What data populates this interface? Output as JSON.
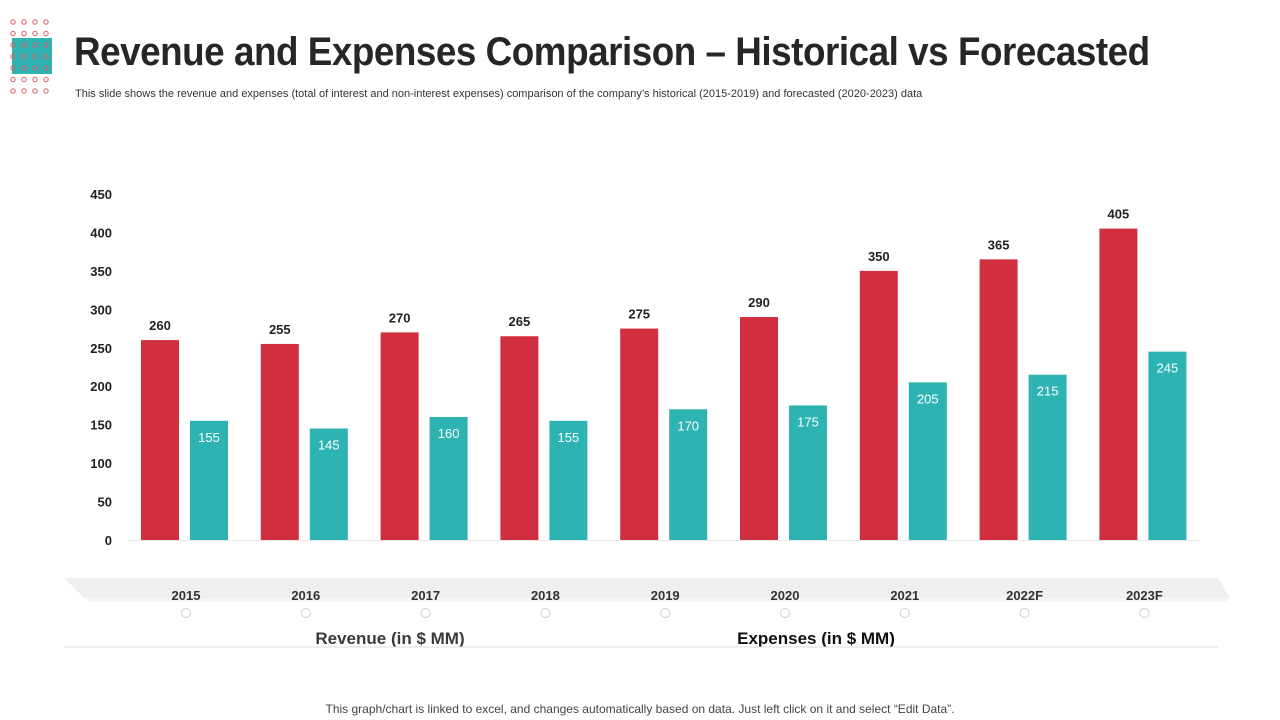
{
  "header": {
    "title": "Revenue and Expenses Comparison – Historical vs Forecasted",
    "subtitle": "This slide shows the revenue and expenses (total of interest and non-interest expenses) comparison of the company’s historical (2015-2019) and forecasted (2020-2023) data"
  },
  "footer": {
    "note": "This graph/chart is linked to excel, and changes automatically based on data. Just left click on it and select “Edit Data”."
  },
  "colors": {
    "revenue": "#d12e3f",
    "expenses": "#2db3b1",
    "logo_accent": "#2db3b1",
    "logo_dots": "#e05a67"
  },
  "chart_data": {
    "type": "bar",
    "categories": [
      "2015",
      "2016",
      "2017",
      "2018",
      "2019",
      "2020",
      "2021",
      "2022F",
      "2023F"
    ],
    "series": [
      {
        "name": "Revenue (in $ MM)",
        "values": [
          260,
          255,
          270,
          265,
          275,
          290,
          350,
          365,
          405
        ]
      },
      {
        "name": "Expenses (in $ MM)",
        "values": [
          155,
          145,
          160,
          155,
          170,
          175,
          205,
          215,
          245
        ]
      }
    ],
    "yticks": [
      "0",
      "50",
      "100",
      "150",
      "200",
      "250",
      "300",
      "350",
      "400",
      "450"
    ],
    "ylim": [
      0,
      450
    ],
    "legend_position": "bottom",
    "grid": false
  }
}
